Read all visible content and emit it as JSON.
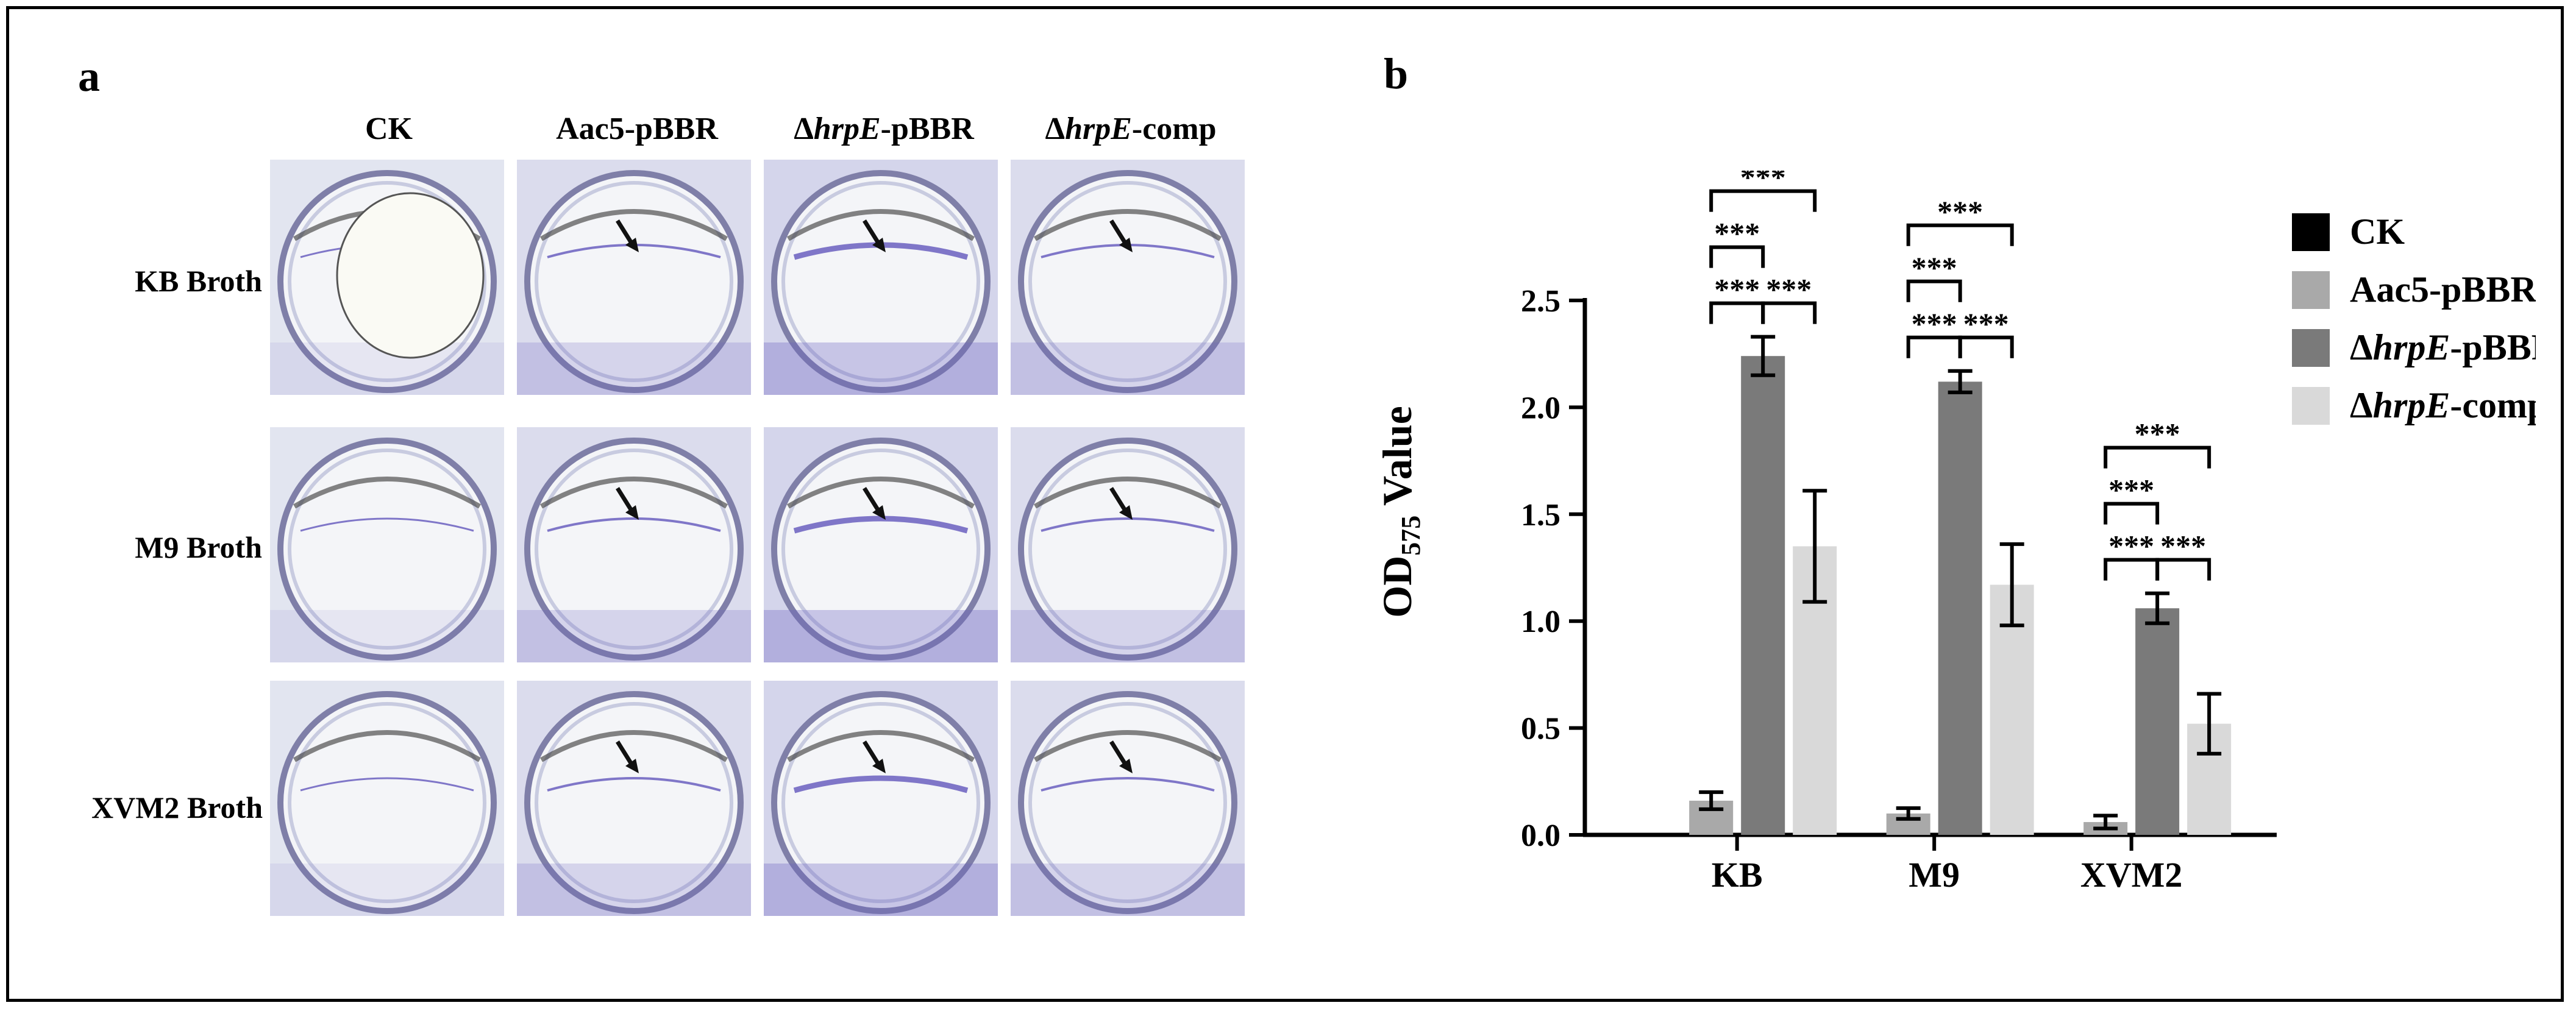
{
  "panel_a": {
    "label": "a",
    "columns": [
      {
        "prefix": "",
        "italic": "",
        "suffix": "CK"
      },
      {
        "prefix": "",
        "italic": "",
        "suffix": "Aac5-pBBR"
      },
      {
        "prefix": "Δ",
        "italic": "hrpE",
        "suffix": "-pBBR"
      },
      {
        "prefix": "Δ",
        "italic": "hrpE",
        "suffix": "-comp"
      }
    ],
    "rows": [
      "KB Broth",
      "M9 Broth",
      "XVM2 Broth"
    ]
  },
  "colors": {
    "CK": "#000000",
    "Aac5-pBBR": "#a9a9a9",
    "hrpE-pBBR": "#7a7a7a",
    "hrpE-comp": "#d9d9d9",
    "stain": "#6a5fc0"
  },
  "chart_data": {
    "panel_label": "b",
    "type": "bar",
    "categories": [
      "KB",
      "M9",
      "XVM2"
    ],
    "ylabel_main": "OD",
    "ylabel_sub": "575",
    "ylabel_rest": " Value",
    "ylim": [
      0,
      2.5
    ],
    "yticks": [
      "0.0",
      "0.5",
      "1.0",
      "1.5",
      "2.0",
      "2.5"
    ],
    "series": [
      {
        "name": "CK",
        "name_prefix": "",
        "name_italic": "",
        "name_suffix": "CK",
        "values": [
          0,
          0,
          0
        ],
        "errors": [
          0,
          0,
          0
        ]
      },
      {
        "name": "Aac5-pBBR",
        "name_prefix": "",
        "name_italic": "",
        "name_suffix": "Aac5-pBBR",
        "values": [
          0.16,
          0.1,
          0.06
        ],
        "errors": [
          0.04,
          0.025,
          0.03
        ]
      },
      {
        "name": "ΔhrpE-pBBR",
        "name_prefix": "Δ",
        "name_italic": "hrpE",
        "name_suffix": "-pBBR",
        "values": [
          2.24,
          2.12,
          1.06
        ],
        "errors": [
          0.09,
          0.05,
          0.07
        ]
      },
      {
        "name": "ΔhrpE-comp",
        "name_prefix": "Δ",
        "name_italic": "hrpE",
        "name_suffix": "-comp",
        "values": [
          1.35,
          1.17,
          0.52
        ],
        "errors": [
          0.26,
          0.19,
          0.14
        ]
      }
    ],
    "significance": [
      {
        "group": 0,
        "from": 1,
        "to": 3,
        "label": "***",
        "level": 2
      },
      {
        "group": 0,
        "from": 1,
        "to": 2,
        "label": "***",
        "level": 1
      },
      {
        "group": 0,
        "from": 2,
        "to": 1,
        "label": "***",
        "level": 0
      },
      {
        "group": 0,
        "from": 2,
        "to": 3,
        "label": "***",
        "level": 0
      },
      {
        "group": 1,
        "from": 1,
        "to": 3,
        "label": "***",
        "level": 2
      },
      {
        "group": 1,
        "from": 1,
        "to": 2,
        "label": "***",
        "level": 1
      },
      {
        "group": 1,
        "from": 2,
        "to": 1,
        "label": "***",
        "level": 0
      },
      {
        "group": 1,
        "from": 2,
        "to": 3,
        "label": "***",
        "level": 0
      },
      {
        "group": 2,
        "from": 1,
        "to": 3,
        "label": "***",
        "level": 2
      },
      {
        "group": 2,
        "from": 1,
        "to": 2,
        "label": "***",
        "level": 1
      },
      {
        "group": 2,
        "from": 2,
        "to": 1,
        "label": "***",
        "level": 0
      },
      {
        "group": 2,
        "from": 2,
        "to": 3,
        "label": "***",
        "level": 0
      }
    ],
    "legend_position": "top-right"
  }
}
